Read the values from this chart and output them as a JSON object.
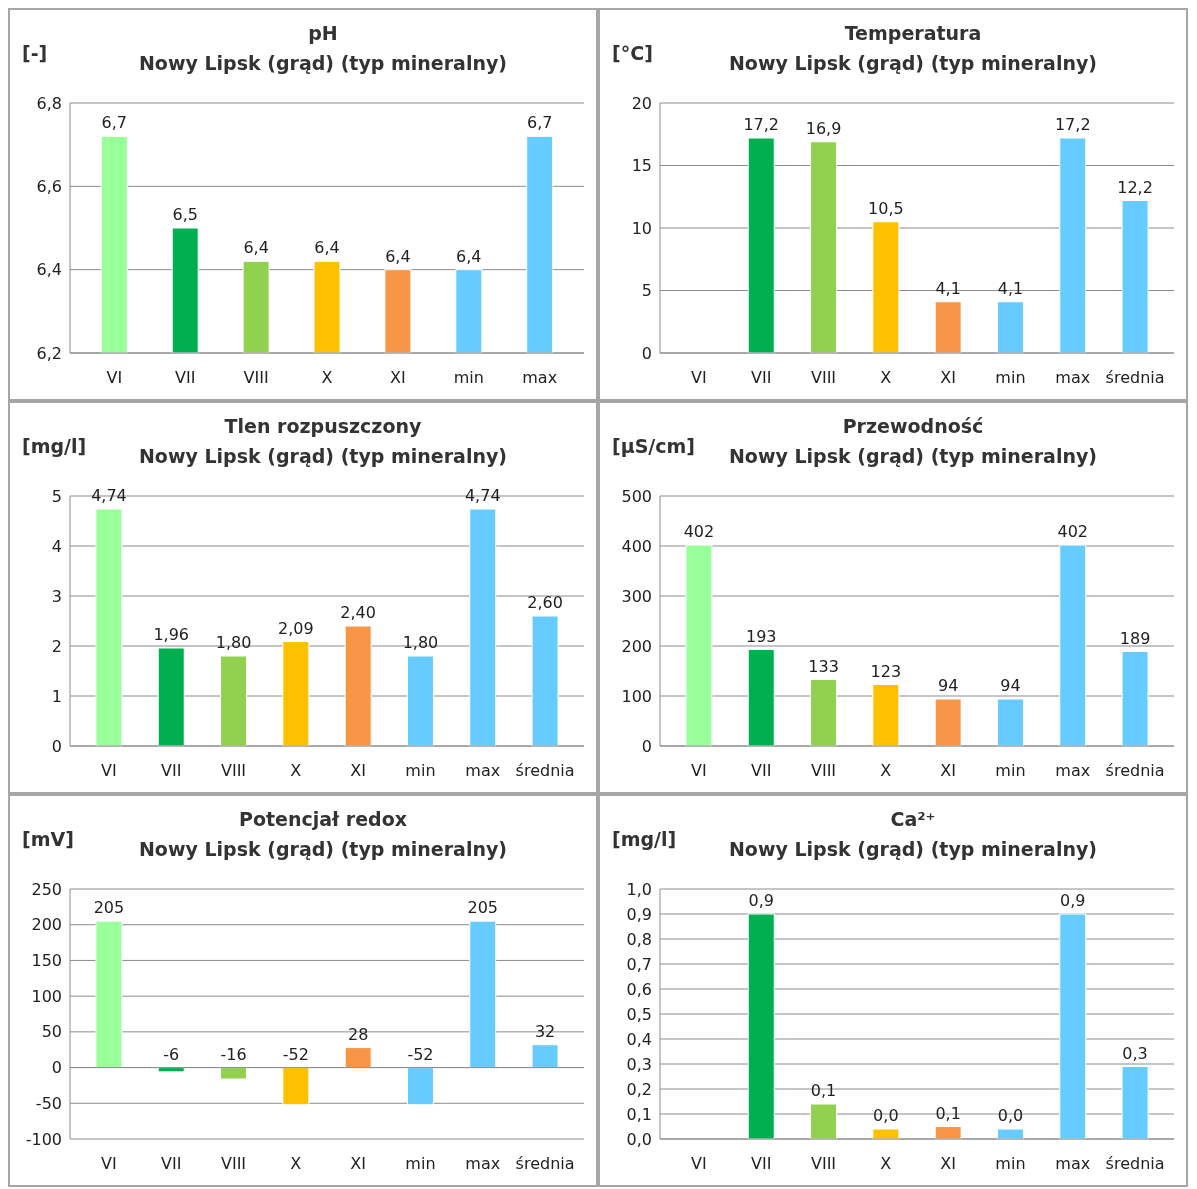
{
  "chart_data": [
    {
      "type": "bar",
      "title": "pH",
      "subtitle": "Nowy Lipsk (grąd) (typ mineralny)",
      "ylabel": "[-]",
      "categories": [
        "VI",
        "VII",
        "VIII",
        "X",
        "XI",
        "min",
        "max"
      ],
      "values": [
        6.72,
        6.5,
        6.42,
        6.42,
        6.4,
        6.4,
        6.72
      ],
      "value_labels": [
        "6,7",
        "6,5",
        "6,4",
        "6,4",
        "6,4",
        "6,4",
        "6,7"
      ],
      "colors": [
        "#99ff99",
        "#00b050",
        "#92d050",
        "#ffc000",
        "#f79646",
        "#66ccff",
        "#66ccff"
      ],
      "ylim": [
        6.2,
        6.8
      ],
      "yticks": [
        {
          "value": 6.2,
          "label": "6,2"
        },
        {
          "value": 6.4,
          "label": "6,4"
        },
        {
          "value": 6.6,
          "label": "6,6"
        },
        {
          "value": 6.8,
          "label": "6,8"
        }
      ],
      "grid": "y"
    },
    {
      "type": "bar",
      "title": "Temperatura",
      "subtitle": "Nowy Lipsk (grąd) (typ mineralny)",
      "ylabel": "[°C]",
      "categories": [
        "VI",
        "VII",
        "VIII",
        "X",
        "XI",
        "min",
        "max",
        "średnia"
      ],
      "values": [
        null,
        17.2,
        16.9,
        10.5,
        4.1,
        4.1,
        17.2,
        12.2
      ],
      "value_labels": [
        null,
        "17,2",
        "16,9",
        "10,5",
        "4,1",
        "4,1",
        "17,2",
        "12,2"
      ],
      "colors": [
        null,
        "#00b050",
        "#92d050",
        "#ffc000",
        "#f79646",
        "#66ccff",
        "#66ccff",
        "#66ccff"
      ],
      "ylim": [
        0,
        20
      ],
      "yticks": [
        0,
        5,
        10,
        15,
        20
      ],
      "grid": "y"
    },
    {
      "type": "bar",
      "title": "Tlen rozpuszczony",
      "subtitle": "Nowy Lipsk (grąd) (typ mineralny)",
      "ylabel": "[mg/l]",
      "categories": [
        "VI",
        "VII",
        "VIII",
        "X",
        "XI",
        "min",
        "max",
        "średnia"
      ],
      "values": [
        4.74,
        1.96,
        1.8,
        2.09,
        2.4,
        1.8,
        4.74,
        2.6
      ],
      "value_labels": [
        "4,74",
        "1,96",
        "1,80",
        "2,09",
        "2,40",
        "1,80",
        "4,74",
        "2,60"
      ],
      "colors": [
        "#99ff99",
        "#00b050",
        "#92d050",
        "#ffc000",
        "#f79646",
        "#66ccff",
        "#66ccff",
        "#66ccff"
      ],
      "ylim": [
        0,
        5
      ],
      "yticks": [
        0,
        1,
        2,
        3,
        4,
        5
      ],
      "grid": "y"
    },
    {
      "type": "bar",
      "title": "Przewodność",
      "subtitle": "Nowy Lipsk (grąd) (typ mineralny)",
      "ylabel": "[µS/cm]",
      "categories": [
        "VI",
        "VII",
        "VIII",
        "X",
        "XI",
        "min",
        "max",
        "średnia"
      ],
      "values": [
        402,
        193,
        133,
        123,
        94,
        94,
        402,
        189
      ],
      "value_labels": [
        "402",
        "193",
        "133",
        "123",
        "94",
        "94",
        "402",
        "189"
      ],
      "colors": [
        "#99ff99",
        "#00b050",
        "#92d050",
        "#ffc000",
        "#f79646",
        "#66ccff",
        "#66ccff",
        "#66ccff"
      ],
      "ylim": [
        0,
        500
      ],
      "yticks": [
        0,
        100,
        200,
        300,
        400,
        500
      ],
      "grid": "y"
    },
    {
      "type": "bar",
      "title": "Potencjał redox",
      "subtitle": "Nowy Lipsk (grąd) (typ mineralny)",
      "ylabel": "[mV]",
      "categories": [
        "VI",
        "VII",
        "VIII",
        "X",
        "XI",
        "min",
        "max",
        "średnia"
      ],
      "values": [
        205,
        -6,
        -16,
        -52,
        28,
        -52,
        205,
        32
      ],
      "value_labels": [
        "205",
        "-6",
        "-16",
        "-52",
        "28",
        "-52",
        "205",
        "32"
      ],
      "colors": [
        "#99ff99",
        "#00b050",
        "#92d050",
        "#ffc000",
        "#f79646",
        "#66ccff",
        "#66ccff",
        "#66ccff"
      ],
      "ylim": [
        -100,
        250
      ],
      "yticks": [
        -100,
        -50,
        0,
        50,
        100,
        150,
        200,
        250
      ],
      "grid": "y"
    },
    {
      "type": "bar",
      "title": "Ca²⁺",
      "subtitle": "Nowy Lipsk (grąd) (typ mineralny)",
      "ylabel": "[mg/l]",
      "categories": [
        "VI",
        "VII",
        "VIII",
        "X",
        "XI",
        "min",
        "max",
        "średnia"
      ],
      "values": [
        null,
        0.9,
        0.14,
        0.04,
        0.05,
        0.04,
        0.9,
        0.29
      ],
      "value_labels": [
        null,
        "0,9",
        "0,1",
        "0,0",
        "0,1",
        "0,0",
        "0,9",
        "0,3"
      ],
      "colors": [
        null,
        "#00b050",
        "#92d050",
        "#ffc000",
        "#f79646",
        "#66ccff",
        "#66ccff",
        "#66ccff"
      ],
      "ylim": [
        0,
        1
      ],
      "yticks": [
        {
          "value": 0,
          "label": "0,0"
        },
        {
          "value": 0.1,
          "label": "0,1"
        },
        {
          "value": 0.2,
          "label": "0,2"
        },
        {
          "value": 0.3,
          "label": "0,3"
        },
        {
          "value": 0.4,
          "label": "0,4"
        },
        {
          "value": 0.5,
          "label": "0,5"
        },
        {
          "value": 0.6,
          "label": "0,6"
        },
        {
          "value": 0.7,
          "label": "0,7"
        },
        {
          "value": 0.8,
          "label": "0,8"
        },
        {
          "value": 0.9,
          "label": "0,9"
        },
        {
          "value": 1.0,
          "label": "1,0"
        }
      ],
      "grid": "y"
    }
  ]
}
